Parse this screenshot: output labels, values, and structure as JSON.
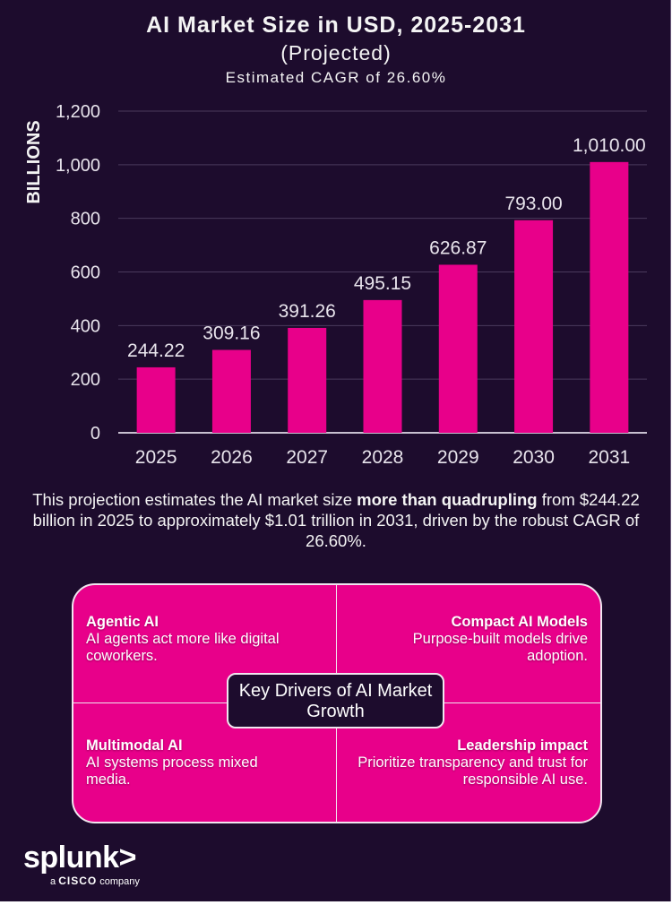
{
  "header": {
    "title": "AI Market Size in USD, 2025-2031",
    "subtitle": "(Projected)",
    "caption": "Estimated CAGR of 26.60%"
  },
  "chart_data": {
    "type": "bar",
    "title": "AI Market Size in USD, 2025-2031 (Projected)",
    "subtitle": "Estimated CAGR of 26.60%",
    "xlabel": "",
    "ylabel": "BILLIONS",
    "categories": [
      "2025",
      "2026",
      "2027",
      "2028",
      "2029",
      "2030",
      "2031"
    ],
    "values": [
      244.22,
      309.16,
      391.26,
      495.15,
      626.87,
      793.0,
      1010.0
    ],
    "data_labels": [
      "244.22",
      "309.16",
      "391.26",
      "495.15",
      "626.87",
      "793.00",
      "1,010.00"
    ],
    "ylim": [
      0,
      1200
    ],
    "yticks": [
      0,
      200,
      400,
      600,
      800,
      1000,
      1200
    ],
    "ytick_labels": [
      "0",
      "200",
      "400",
      "600",
      "800",
      "1,000",
      "1,200"
    ],
    "grid": true,
    "legend": "none",
    "bar_color": "#e8008a"
  },
  "summary": {
    "before": "This projection estimates the AI market size ",
    "bold": "more than quadrupling",
    "after": " from $244.22 billion in 2025 to approximately $1.01 trillion in 2031, driven by the robust CAGR of 26.60%."
  },
  "drivers": {
    "center_label": "Key Drivers of AI Market Growth",
    "items": [
      {
        "title": "Agentic AI",
        "text": "AI agents act more like digital coworkers."
      },
      {
        "title": "Compact AI Models",
        "text": "Purpose-built models drive adoption."
      },
      {
        "title": "Multimodal AI",
        "text": "AI systems process mixed media."
      },
      {
        "title": "Leadership impact",
        "text": "Prioritize transparency and trust for responsible AI use."
      }
    ]
  },
  "logo": {
    "brand": "splunk>",
    "tag_prefix": "a",
    "tag_brand": "CISCO",
    "tag_suffix": "company"
  },
  "colors": {
    "background": "#1d0c2d",
    "accent": "#e8008a",
    "text": "#f4f4f4"
  }
}
